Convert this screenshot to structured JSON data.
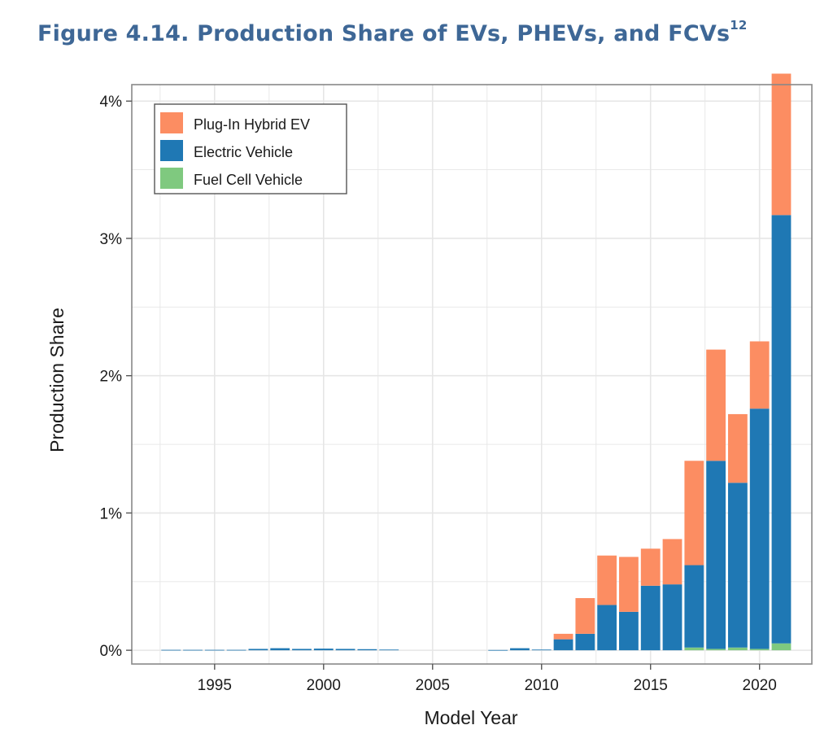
{
  "figure": {
    "title": "Figure 4.14. Production Share of EVs, PHEVs, and FCVs",
    "footnote": "12"
  },
  "colors": {
    "phev": "#fc8d62",
    "ev": "#1f78b4",
    "fcv": "#7fc97f",
    "grid": "#e6e6e6",
    "frame": "#888888",
    "title": "#3e6796"
  },
  "chart_data": {
    "type": "bar",
    "stacked": true,
    "xlabel": "Model Year",
    "ylabel": "Production Share",
    "xlim": [
      1991.2,
      2022.4
    ],
    "ylim": [
      -0.1,
      4.12
    ],
    "x_ticks": [
      1995,
      2000,
      2005,
      2010,
      2015,
      2020
    ],
    "y_ticks": [
      0,
      1,
      2,
      3,
      4
    ],
    "y_tick_labels": [
      "0%",
      "1%",
      "2%",
      "3%",
      "4%"
    ],
    "grid": true,
    "legend_position": "top-left",
    "x": [
      1993,
      1994,
      1995,
      1996,
      1997,
      1998,
      1999,
      2000,
      2001,
      2002,
      2003,
      2004,
      2005,
      2006,
      2007,
      2008,
      2009,
      2010,
      2011,
      2012,
      2013,
      2014,
      2015,
      2016,
      2017,
      2018,
      2019,
      2020,
      2021
    ],
    "series": [
      {
        "name": "Fuel Cell Vehicle",
        "color": "#7fc97f",
        "values": [
          0,
          0,
          0,
          0,
          0,
          0,
          0,
          0,
          0,
          0,
          0,
          0,
          0,
          0,
          0,
          0,
          0,
          0,
          0,
          0,
          0,
          0,
          0,
          0,
          0.02,
          0.01,
          0.02,
          0.01,
          0.05
        ]
      },
      {
        "name": "Electric Vehicle",
        "color": "#1f78b4",
        "values": [
          0.003,
          0.003,
          0.003,
          0.003,
          0.01,
          0.015,
          0.01,
          0.012,
          0.01,
          0.008,
          0.005,
          0,
          0,
          0,
          0,
          0.002,
          0.015,
          0.005,
          0.08,
          0.12,
          0.33,
          0.28,
          0.47,
          0.48,
          0.6,
          1.37,
          1.2,
          1.75,
          3.12
        ]
      },
      {
        "name": "Plug-In Hybrid EV",
        "color": "#fc8d62",
        "values": [
          0,
          0,
          0,
          0,
          0,
          0,
          0,
          0,
          0,
          0,
          0,
          0,
          0,
          0,
          0,
          0,
          0,
          0,
          0.04,
          0.26,
          0.36,
          0.4,
          0.27,
          0.33,
          0.76,
          0.81,
          0.5,
          0.49,
          1.03
        ]
      }
    ]
  }
}
